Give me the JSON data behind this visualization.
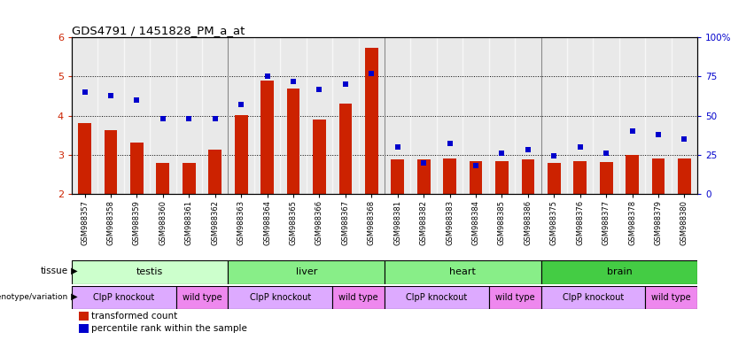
{
  "title": "GDS4791 / 1451828_PM_a_at",
  "samples": [
    "GSM988357",
    "GSM988358",
    "GSM988359",
    "GSM988360",
    "GSM988361",
    "GSM988362",
    "GSM988363",
    "GSM988364",
    "GSM988365",
    "GSM988366",
    "GSM988367",
    "GSM988368",
    "GSM988381",
    "GSM988382",
    "GSM988383",
    "GSM988384",
    "GSM988385",
    "GSM988386",
    "GSM988375",
    "GSM988376",
    "GSM988377",
    "GSM988378",
    "GSM988379",
    "GSM988380"
  ],
  "bar_values": [
    3.82,
    3.62,
    3.31,
    2.78,
    2.79,
    3.14,
    4.01,
    4.9,
    4.7,
    3.9,
    4.3,
    5.74,
    2.88,
    2.87,
    2.9,
    2.84,
    2.84,
    2.87,
    2.78,
    2.84,
    2.82,
    3.0,
    2.91,
    2.9
  ],
  "dot_values": [
    65,
    63,
    60,
    48,
    48,
    48,
    57,
    75,
    72,
    67,
    70,
    77,
    30,
    20,
    32,
    18,
    26,
    28,
    24,
    30,
    26,
    40,
    38,
    35
  ],
  "ylim_left": [
    2.0,
    6.0
  ],
  "ylim_right": [
    0,
    100
  ],
  "yticks_left": [
    2,
    3,
    4,
    5,
    6
  ],
  "yticks_right": [
    0,
    25,
    50,
    75,
    100
  ],
  "bar_color": "#cc2200",
  "dot_color": "#0000cc",
  "tissue_groups": [
    {
      "label": "testis",
      "start": 0,
      "end": 6,
      "color": "#ccffcc"
    },
    {
      "label": "liver",
      "start": 6,
      "end": 12,
      "color": "#88ee88"
    },
    {
      "label": "heart",
      "start": 12,
      "end": 18,
      "color": "#88ee88"
    },
    {
      "label": "brain",
      "start": 18,
      "end": 24,
      "color": "#44cc44"
    }
  ],
  "genotype_groups": [
    {
      "label": "ClpP knockout",
      "start": 0,
      "end": 4,
      "color": "#ddaaff"
    },
    {
      "label": "wild type",
      "start": 4,
      "end": 6,
      "color": "#ee88ee"
    },
    {
      "label": "ClpP knockout",
      "start": 6,
      "end": 10,
      "color": "#ddaaff"
    },
    {
      "label": "wild type",
      "start": 10,
      "end": 12,
      "color": "#ee88ee"
    },
    {
      "label": "ClpP knockout",
      "start": 12,
      "end": 16,
      "color": "#ddaaff"
    },
    {
      "label": "wild type",
      "start": 16,
      "end": 18,
      "color": "#ee88ee"
    },
    {
      "label": "ClpP knockout",
      "start": 18,
      "end": 22,
      "color": "#ddaaff"
    },
    {
      "label": "wild type",
      "start": 22,
      "end": 24,
      "color": "#ee88ee"
    }
  ],
  "legend_items": [
    {
      "label": "transformed count",
      "color": "#cc2200"
    },
    {
      "label": "percentile rank within the sample",
      "color": "#0000cc"
    }
  ],
  "chart_bg": "#d8d8d8"
}
